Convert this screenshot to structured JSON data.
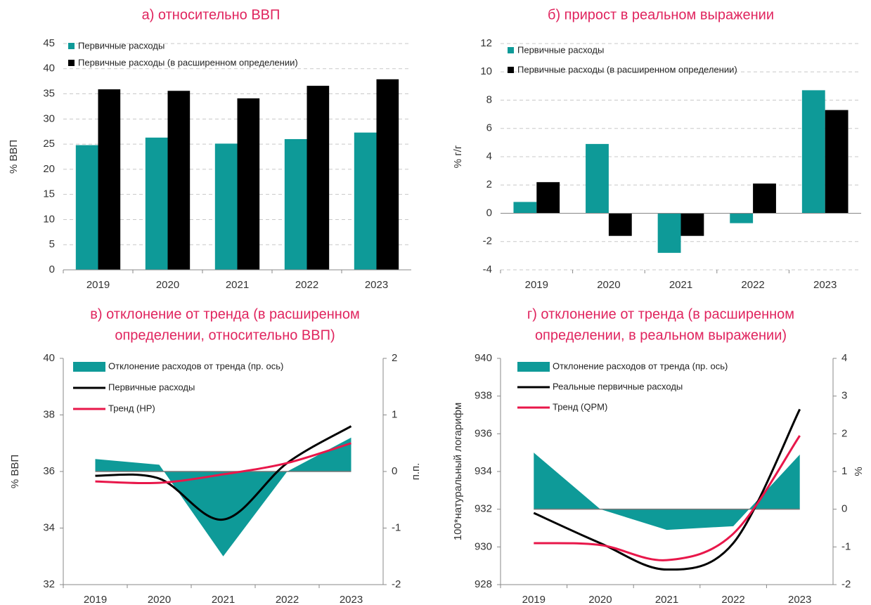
{
  "chart_data": [
    {
      "type": "bar",
      "title": [
        "а) относительно ВВП"
      ],
      "y_label": "% ВВП",
      "categories": [
        "2019",
        "2020",
        "2021",
        "2022",
        "2023"
      ],
      "series": [
        {
          "name": "Первичные расходы",
          "color": "#0e9a98",
          "values": [
            24.8,
            26.3,
            25.1,
            26.0,
            27.3
          ]
        },
        {
          "name": "Первичные расходы (в расширенном определении)",
          "color": "#000000",
          "values": [
            35.9,
            35.6,
            34.1,
            36.6,
            37.9
          ]
        }
      ],
      "ylim": [
        0,
        45
      ],
      "yticks": [
        0,
        5,
        10,
        15,
        20,
        25,
        30,
        35,
        40,
        45
      ],
      "grid": true
    },
    {
      "type": "bar",
      "title": [
        "б) прирост в реальном выражении"
      ],
      "y_label": "% г/г",
      "categories": [
        "2019",
        "2020",
        "2021",
        "2022",
        "2023"
      ],
      "series": [
        {
          "name": "Первичные расходы",
          "color": "#0e9a98",
          "values": [
            0.8,
            4.9,
            -2.8,
            -0.7,
            8.7
          ]
        },
        {
          "name": "Первичные расходы (в расширенном определении)",
          "color": "#000000",
          "values": [
            2.2,
            -1.6,
            -1.6,
            2.1,
            7.3
          ]
        }
      ],
      "ylim": [
        -4,
        12
      ],
      "yticks": [
        -4,
        -2,
        0,
        2,
        4,
        6,
        8,
        10,
        12
      ],
      "grid": true
    },
    {
      "type": "line",
      "title": [
        "в) отклонение от тренда (в расширенном",
        "определении, относительно ВВП)"
      ],
      "y_label": "% ВВП",
      "y2_label": "п.п.",
      "categories": [
        "2019",
        "2020",
        "2021",
        "2022",
        "2023"
      ],
      "series": [
        {
          "name": "Отклонение расходов от тренда (пр. ось)",
          "color": "#0e9a98",
          "style": "area",
          "axis": "y2",
          "values": [
            0.22,
            0.12,
            -1.5,
            0.0,
            0.6
          ]
        },
        {
          "name": "Первичные расходы",
          "color": "#000000",
          "values": [
            35.85,
            35.75,
            34.3,
            36.3,
            37.6
          ]
        },
        {
          "name": "Тренд (HP)",
          "color": "#e8174a",
          "values": [
            35.65,
            35.6,
            35.9,
            36.3,
            37.0
          ]
        }
      ],
      "ylim": [
        32,
        40
      ],
      "yticks": [
        32,
        34,
        36,
        38,
        40
      ],
      "y2lim": [
        -2,
        2
      ],
      "y2ticks": [
        -2,
        -1,
        0,
        1,
        2
      ],
      "grid": false
    },
    {
      "type": "line",
      "title": [
        "г) отклонение от тренда (в расширенном",
        "определении, в реальном выражении)"
      ],
      "y_label": "100*натуральный логарифм",
      "y2_label": "%",
      "categories": [
        "2019",
        "2020",
        "2021",
        "2022",
        "2023"
      ],
      "series": [
        {
          "name": "Отклонение расходов от тренда (пр. ось)",
          "color": "#0e9a98",
          "style": "area",
          "axis": "y2",
          "values": [
            1.5,
            0.0,
            -0.55,
            -0.45,
            1.45
          ]
        },
        {
          "name": "Реальные первичные расходы",
          "color": "#000000",
          "values": [
            931.8,
            930.2,
            928.8,
            930.2,
            937.3
          ]
        },
        {
          "name": "Тренд (QPM)",
          "color": "#e8174a",
          "values": [
            930.2,
            930.1,
            929.3,
            930.7,
            935.9
          ]
        }
      ],
      "ylim": [
        928,
        940
      ],
      "yticks": [
        928,
        930,
        932,
        934,
        936,
        938,
        940
      ],
      "y2lim": [
        -2,
        4
      ],
      "y2ticks": [
        -2,
        -1,
        0,
        1,
        2,
        3,
        4
      ],
      "grid": false
    }
  ]
}
